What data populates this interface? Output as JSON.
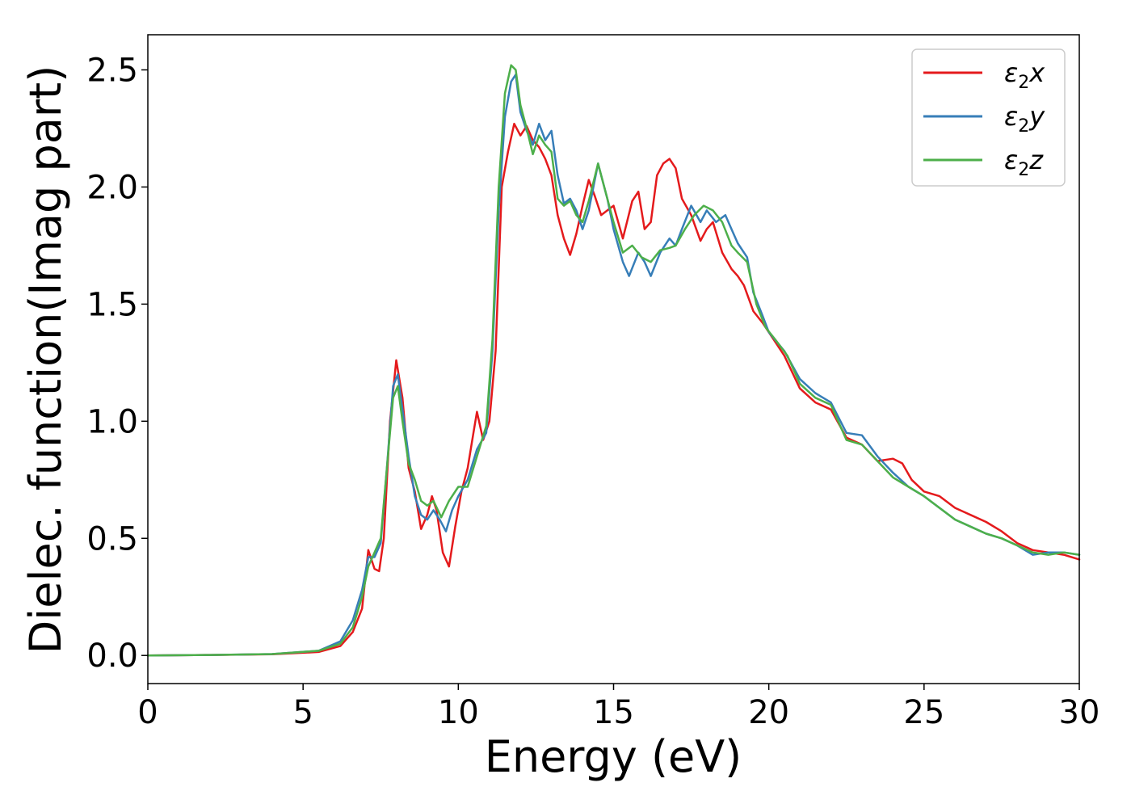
{
  "chart_data": {
    "type": "line",
    "title": "",
    "xlabel": "Energy (eV)",
    "ylabel": "Dielec. function(Imag part)",
    "xlim": [
      0,
      30
    ],
    "ylim": [
      -0.12,
      2.65
    ],
    "xticks": [
      0,
      5,
      10,
      15,
      20,
      25,
      30
    ],
    "xtick_labels": [
      "0",
      "5",
      "10",
      "15",
      "20",
      "25",
      "30"
    ],
    "yticks": [
      0.0,
      0.5,
      1.0,
      1.5,
      2.0,
      2.5
    ],
    "ytick_labels": [
      "0.0",
      "0.5",
      "1.0",
      "1.5",
      "2.0",
      "2.5"
    ],
    "grid": false,
    "legend_position": "top-right",
    "series": [
      {
        "name": "ε₂x",
        "legend_main": "ε",
        "legend_sub": "2",
        "legend_var": "x",
        "color": "#e41a1c",
        "points": [
          [
            0,
            0.0
          ],
          [
            2,
            0.002
          ],
          [
            4,
            0.005
          ],
          [
            5.5,
            0.015
          ],
          [
            6.2,
            0.04
          ],
          [
            6.6,
            0.1
          ],
          [
            6.9,
            0.2
          ],
          [
            7.1,
            0.45
          ],
          [
            7.3,
            0.37
          ],
          [
            7.45,
            0.36
          ],
          [
            7.6,
            0.5
          ],
          [
            7.8,
            1.0
          ],
          [
            8.0,
            1.26
          ],
          [
            8.2,
            1.1
          ],
          [
            8.4,
            0.8
          ],
          [
            8.6,
            0.7
          ],
          [
            8.8,
            0.54
          ],
          [
            9.0,
            0.6
          ],
          [
            9.15,
            0.68
          ],
          [
            9.3,
            0.62
          ],
          [
            9.5,
            0.44
          ],
          [
            9.7,
            0.38
          ],
          [
            9.9,
            0.55
          ],
          [
            10.1,
            0.7
          ],
          [
            10.3,
            0.8
          ],
          [
            10.5,
            0.96
          ],
          [
            10.6,
            1.04
          ],
          [
            10.8,
            0.92
          ],
          [
            11.0,
            1.0
          ],
          [
            11.2,
            1.3
          ],
          [
            11.4,
            2.0
          ],
          [
            11.6,
            2.15
          ],
          [
            11.8,
            2.27
          ],
          [
            12.0,
            2.22
          ],
          [
            12.2,
            2.26
          ],
          [
            12.4,
            2.2
          ],
          [
            12.6,
            2.17
          ],
          [
            12.8,
            2.12
          ],
          [
            13.0,
            2.05
          ],
          [
            13.2,
            1.88
          ],
          [
            13.4,
            1.78
          ],
          [
            13.6,
            1.71
          ],
          [
            13.8,
            1.8
          ],
          [
            14.0,
            1.92
          ],
          [
            14.2,
            2.03
          ],
          [
            14.4,
            1.96
          ],
          [
            14.6,
            1.88
          ],
          [
            14.8,
            1.9
          ],
          [
            15.0,
            1.92
          ],
          [
            15.3,
            1.78
          ],
          [
            15.6,
            1.94
          ],
          [
            15.8,
            1.98
          ],
          [
            16.0,
            1.82
          ],
          [
            16.2,
            1.85
          ],
          [
            16.4,
            2.05
          ],
          [
            16.6,
            2.1
          ],
          [
            16.8,
            2.12
          ],
          [
            17.0,
            2.08
          ],
          [
            17.2,
            1.95
          ],
          [
            17.5,
            1.88
          ],
          [
            17.8,
            1.77
          ],
          [
            18.0,
            1.82
          ],
          [
            18.2,
            1.85
          ],
          [
            18.5,
            1.72
          ],
          [
            18.8,
            1.65
          ],
          [
            19.0,
            1.62
          ],
          [
            19.2,
            1.58
          ],
          [
            19.5,
            1.47
          ],
          [
            19.8,
            1.42
          ],
          [
            20.0,
            1.38
          ],
          [
            20.5,
            1.28
          ],
          [
            21.0,
            1.14
          ],
          [
            21.5,
            1.08
          ],
          [
            22.0,
            1.05
          ],
          [
            22.5,
            0.93
          ],
          [
            23.0,
            0.9
          ],
          [
            23.5,
            0.83
          ],
          [
            24.0,
            0.84
          ],
          [
            24.3,
            0.82
          ],
          [
            24.6,
            0.75
          ],
          [
            25.0,
            0.7
          ],
          [
            25.5,
            0.68
          ],
          [
            26.0,
            0.63
          ],
          [
            26.5,
            0.6
          ],
          [
            27.0,
            0.57
          ],
          [
            27.5,
            0.53
          ],
          [
            28.0,
            0.48
          ],
          [
            28.5,
            0.45
          ],
          [
            29.0,
            0.44
          ],
          [
            29.5,
            0.43
          ],
          [
            30.0,
            0.41
          ]
        ]
      },
      {
        "name": "ε₂y",
        "legend_main": "ε",
        "legend_sub": "2",
        "legend_var": "y",
        "color": "#377eb8",
        "points": [
          [
            0,
            0.0
          ],
          [
            2,
            0.002
          ],
          [
            4,
            0.006
          ],
          [
            5.5,
            0.02
          ],
          [
            6.2,
            0.06
          ],
          [
            6.6,
            0.15
          ],
          [
            6.9,
            0.28
          ],
          [
            7.1,
            0.42
          ],
          [
            7.3,
            0.42
          ],
          [
            7.5,
            0.48
          ],
          [
            7.7,
            0.8
          ],
          [
            7.9,
            1.15
          ],
          [
            8.05,
            1.2
          ],
          [
            8.2,
            1.05
          ],
          [
            8.4,
            0.85
          ],
          [
            8.6,
            0.68
          ],
          [
            8.8,
            0.6
          ],
          [
            9.0,
            0.58
          ],
          [
            9.2,
            0.62
          ],
          [
            9.4,
            0.58
          ],
          [
            9.6,
            0.53
          ],
          [
            9.8,
            0.62
          ],
          [
            10.0,
            0.68
          ],
          [
            10.3,
            0.75
          ],
          [
            10.6,
            0.88
          ],
          [
            10.9,
            0.95
          ],
          [
            11.1,
            1.3
          ],
          [
            11.3,
            1.9
          ],
          [
            11.5,
            2.3
          ],
          [
            11.7,
            2.45
          ],
          [
            11.85,
            2.48
          ],
          [
            12.0,
            2.32
          ],
          [
            12.2,
            2.24
          ],
          [
            12.4,
            2.18
          ],
          [
            12.6,
            2.27
          ],
          [
            12.8,
            2.2
          ],
          [
            13.0,
            2.24
          ],
          [
            13.2,
            2.05
          ],
          [
            13.4,
            1.93
          ],
          [
            13.6,
            1.95
          ],
          [
            13.8,
            1.9
          ],
          [
            14.0,
            1.82
          ],
          [
            14.2,
            1.9
          ],
          [
            14.5,
            2.1
          ],
          [
            14.8,
            1.95
          ],
          [
            15.0,
            1.82
          ],
          [
            15.3,
            1.68
          ],
          [
            15.5,
            1.62
          ],
          [
            15.8,
            1.72
          ],
          [
            16.0,
            1.68
          ],
          [
            16.2,
            1.62
          ],
          [
            16.5,
            1.72
          ],
          [
            16.8,
            1.78
          ],
          [
            17.0,
            1.75
          ],
          [
            17.2,
            1.82
          ],
          [
            17.5,
            1.92
          ],
          [
            17.8,
            1.85
          ],
          [
            18.0,
            1.9
          ],
          [
            18.3,
            1.85
          ],
          [
            18.6,
            1.88
          ],
          [
            18.8,
            1.82
          ],
          [
            19.0,
            1.76
          ],
          [
            19.3,
            1.7
          ],
          [
            19.5,
            1.55
          ],
          [
            19.8,
            1.45
          ],
          [
            20.0,
            1.38
          ],
          [
            20.5,
            1.3
          ],
          [
            21.0,
            1.18
          ],
          [
            21.5,
            1.12
          ],
          [
            22.0,
            1.08
          ],
          [
            22.5,
            0.95
          ],
          [
            23.0,
            0.94
          ],
          [
            23.5,
            0.85
          ],
          [
            24.0,
            0.78
          ],
          [
            24.5,
            0.72
          ],
          [
            25.0,
            0.68
          ],
          [
            25.5,
            0.63
          ],
          [
            26.0,
            0.58
          ],
          [
            26.5,
            0.55
          ],
          [
            27.0,
            0.52
          ],
          [
            27.5,
            0.5
          ],
          [
            28.0,
            0.47
          ],
          [
            28.5,
            0.43
          ],
          [
            29.0,
            0.44
          ],
          [
            29.5,
            0.44
          ],
          [
            30.0,
            0.43
          ]
        ]
      },
      {
        "name": "ε₂z",
        "legend_main": "ε",
        "legend_sub": "2",
        "legend_var": "z",
        "color": "#4daf4a",
        "points": [
          [
            0,
            0.0
          ],
          [
            2,
            0.002
          ],
          [
            4,
            0.006
          ],
          [
            5.5,
            0.02
          ],
          [
            6.2,
            0.05
          ],
          [
            6.6,
            0.12
          ],
          [
            6.9,
            0.25
          ],
          [
            7.1,
            0.38
          ],
          [
            7.3,
            0.44
          ],
          [
            7.5,
            0.5
          ],
          [
            7.7,
            0.8
          ],
          [
            7.9,
            1.1
          ],
          [
            8.05,
            1.15
          ],
          [
            8.2,
            1.0
          ],
          [
            8.4,
            0.82
          ],
          [
            8.6,
            0.75
          ],
          [
            8.8,
            0.66
          ],
          [
            9.0,
            0.64
          ],
          [
            9.2,
            0.66
          ],
          [
            9.45,
            0.59
          ],
          [
            9.7,
            0.66
          ],
          [
            10.0,
            0.72
          ],
          [
            10.3,
            0.72
          ],
          [
            10.6,
            0.85
          ],
          [
            10.9,
            0.98
          ],
          [
            11.1,
            1.35
          ],
          [
            11.3,
            2.0
          ],
          [
            11.5,
            2.4
          ],
          [
            11.7,
            2.52
          ],
          [
            11.85,
            2.5
          ],
          [
            12.0,
            2.35
          ],
          [
            12.2,
            2.25
          ],
          [
            12.4,
            2.14
          ],
          [
            12.6,
            2.22
          ],
          [
            12.8,
            2.18
          ],
          [
            13.0,
            2.15
          ],
          [
            13.2,
            1.95
          ],
          [
            13.4,
            1.92
          ],
          [
            13.6,
            1.94
          ],
          [
            13.8,
            1.88
          ],
          [
            14.0,
            1.85
          ],
          [
            14.2,
            1.94
          ],
          [
            14.5,
            2.1
          ],
          [
            14.8,
            1.95
          ],
          [
            15.0,
            1.85
          ],
          [
            15.3,
            1.72
          ],
          [
            15.6,
            1.75
          ],
          [
            15.9,
            1.7
          ],
          [
            16.2,
            1.68
          ],
          [
            16.5,
            1.73
          ],
          [
            16.8,
            1.74
          ],
          [
            17.0,
            1.75
          ],
          [
            17.3,
            1.82
          ],
          [
            17.6,
            1.88
          ],
          [
            17.9,
            1.92
          ],
          [
            18.2,
            1.9
          ],
          [
            18.5,
            1.85
          ],
          [
            18.8,
            1.75
          ],
          [
            19.0,
            1.72
          ],
          [
            19.3,
            1.68
          ],
          [
            19.6,
            1.5
          ],
          [
            19.9,
            1.4
          ],
          [
            20.2,
            1.35
          ],
          [
            20.6,
            1.28
          ],
          [
            21.0,
            1.16
          ],
          [
            21.5,
            1.1
          ],
          [
            22.0,
            1.07
          ],
          [
            22.5,
            0.92
          ],
          [
            23.0,
            0.9
          ],
          [
            23.5,
            0.83
          ],
          [
            24.0,
            0.76
          ],
          [
            24.5,
            0.72
          ],
          [
            25.0,
            0.68
          ],
          [
            25.5,
            0.63
          ],
          [
            26.0,
            0.58
          ],
          [
            26.5,
            0.55
          ],
          [
            27.0,
            0.52
          ],
          [
            27.5,
            0.5
          ],
          [
            28.0,
            0.47
          ],
          [
            28.5,
            0.44
          ],
          [
            29.0,
            0.43
          ],
          [
            29.5,
            0.44
          ],
          [
            30.0,
            0.43
          ]
        ]
      }
    ]
  }
}
